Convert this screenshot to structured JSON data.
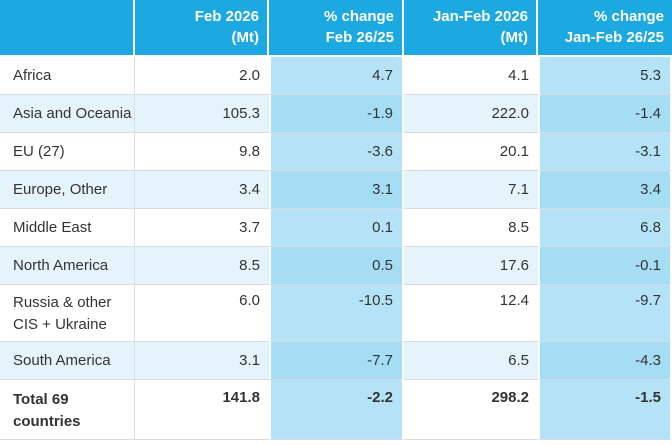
{
  "colors": {
    "header_bg": "#1CA8E1",
    "header_text": "#FFFFFF",
    "pct_cell": "#B4E3F7",
    "pct_cell_striped": "#A5DDF4",
    "stripe_row": "#E5F3FB",
    "grid_line": "#DADAE0",
    "text": "#333333"
  },
  "table": {
    "headers": [
      {
        "line1": "",
        "line2": ""
      },
      {
        "line1": "Feb 2026",
        "line2": "(Mt)"
      },
      {
        "line1": "% change",
        "line2": "Feb 26/25"
      },
      {
        "line1": "Jan-Feb 2026",
        "line2": "(Mt)"
      },
      {
        "line1": "% change",
        "line2": "Jan-Feb 26/25"
      }
    ],
    "rows": [
      {
        "region": "Africa",
        "feb_mt": "2.0",
        "feb_change": "4.7",
        "janfeb_mt": "4.1",
        "janfeb_change": "5.3"
      },
      {
        "region": "Asia and Oceania",
        "feb_mt": "105.3",
        "feb_change": "-1.9",
        "janfeb_mt": "222.0",
        "janfeb_change": "-1.4"
      },
      {
        "region": "EU (27)",
        "feb_mt": "9.8",
        "feb_change": "-3.6",
        "janfeb_mt": "20.1",
        "janfeb_change": "-3.1"
      },
      {
        "region": "Europe, Other",
        "feb_mt": "3.4",
        "feb_change": "3.1",
        "janfeb_mt": "7.1",
        "janfeb_change": "3.4"
      },
      {
        "region": "Middle East",
        "feb_mt": "3.7",
        "feb_change": "0.1",
        "janfeb_mt": "8.5",
        "janfeb_change": "6.8"
      },
      {
        "region": "North America",
        "feb_mt": "8.5",
        "feb_change": "0.5",
        "janfeb_mt": "17.6",
        "janfeb_change": "-0.1"
      },
      {
        "region": "Russia & other\nCIS + Ukraine",
        "feb_mt": "6.0",
        "feb_change": "-10.5",
        "janfeb_mt": "12.4",
        "janfeb_change": "-9.7"
      },
      {
        "region": "South America",
        "feb_mt": "3.1",
        "feb_change": "-7.7",
        "janfeb_mt": "6.5",
        "janfeb_change": "-4.3"
      },
      {
        "region": "Total 69\ncountries",
        "feb_mt": "141.8",
        "feb_change": "-2.2",
        "janfeb_mt": "298.2",
        "janfeb_change": "-1.5",
        "emphasis": true
      }
    ]
  },
  "chart_data": {
    "type": "table",
    "columns": [
      "",
      "Feb 2026 (Mt)",
      "% change Feb 26/25",
      "Jan-Feb 2026 (Mt)",
      "% change Jan-Feb 26/25"
    ],
    "rows": [
      [
        "Africa",
        2.0,
        4.7,
        4.1,
        5.3
      ],
      [
        "Asia and Oceania",
        105.3,
        -1.9,
        222.0,
        -1.4
      ],
      [
        "EU (27)",
        9.8,
        -3.6,
        20.1,
        -3.1
      ],
      [
        "Europe, Other",
        3.4,
        3.1,
        7.1,
        3.4
      ],
      [
        "Middle East",
        3.7,
        0.1,
        8.5,
        6.8
      ],
      [
        "North America",
        8.5,
        0.5,
        17.6,
        -0.1
      ],
      [
        "Russia & other CIS + Ukraine",
        6.0,
        -10.5,
        12.4,
        -9.7
      ],
      [
        "South America",
        3.1,
        -7.7,
        6.5,
        -4.3
      ],
      [
        "Total 69 countries",
        141.8,
        -2.2,
        298.2,
        -1.5
      ]
    ]
  }
}
